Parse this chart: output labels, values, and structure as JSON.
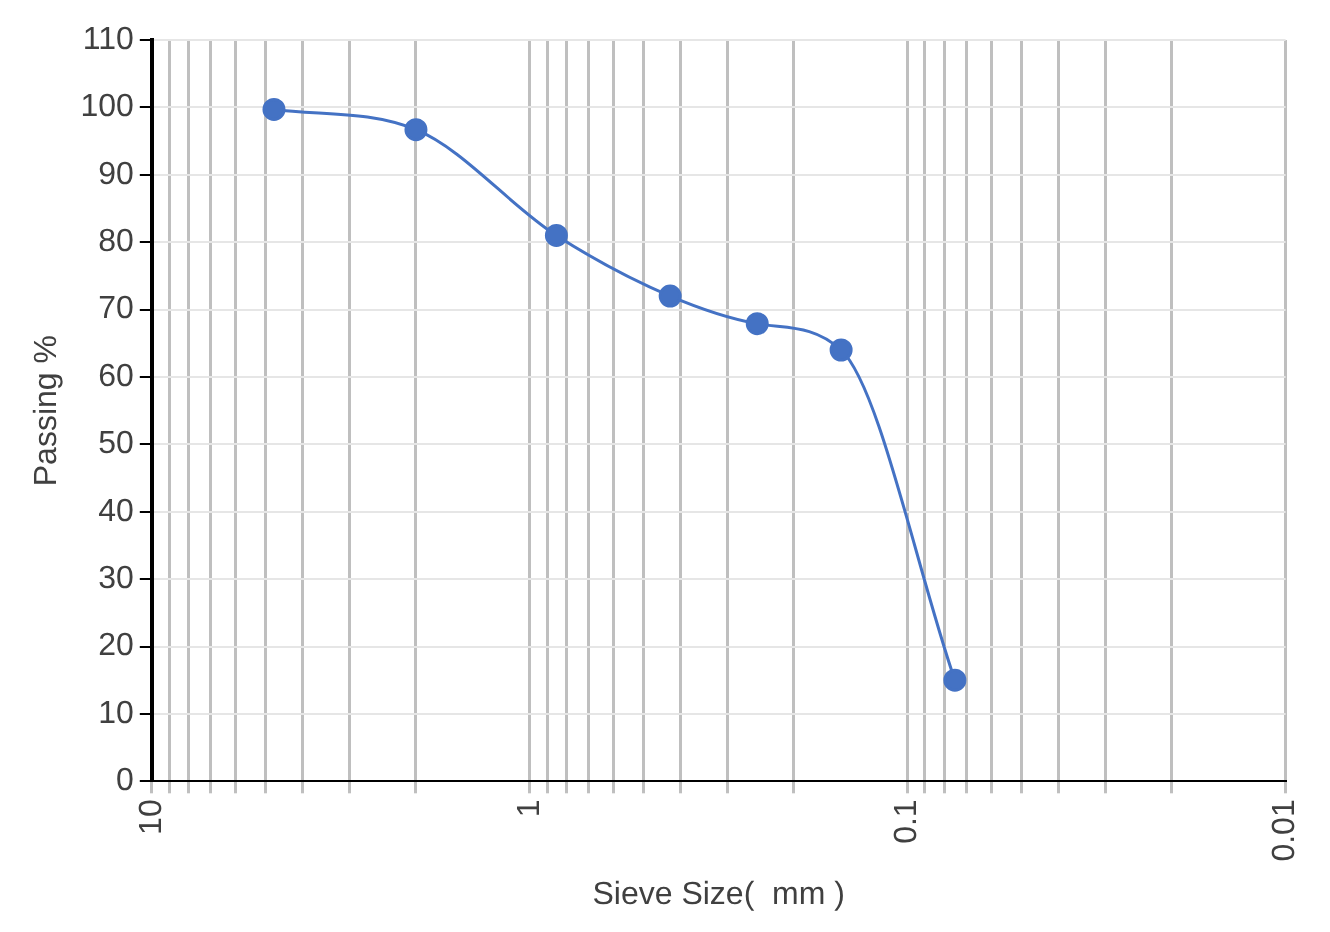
{
  "chart_data": {
    "type": "line",
    "xlabel": "Sieve Size(  mm )",
    "ylabel": "Passing %",
    "x": [
      4.75,
      2,
      0.85,
      0.425,
      0.25,
      0.15,
      0.075
    ],
    "series": [
      {
        "color": "#4472c4",
        "values": [
          99.7,
          96.7,
          81,
          72,
          67.9,
          64,
          15
        ]
      }
    ],
    "log": "x",
    "xlim": [
      10,
      0.01
    ],
    "xticks": [
      10,
      {
        "value": 9,
        "label": null
      },
      {
        "value": 8,
        "label": null
      },
      {
        "value": 7,
        "label": null
      },
      {
        "value": 6,
        "label": null
      },
      {
        "value": 5,
        "label": null
      },
      {
        "value": 4,
        "label": null
      },
      {
        "value": 3,
        "label": null
      },
      {
        "value": 2,
        "label": null
      },
      1,
      {
        "value": 0.9,
        "label": null
      },
      {
        "value": 0.8,
        "label": null
      },
      {
        "value": 0.7,
        "label": null
      },
      {
        "value": 0.6,
        "label": null
      },
      {
        "value": 0.5,
        "label": null
      },
      {
        "value": 0.4,
        "label": null
      },
      {
        "value": 0.3,
        "label": null
      },
      {
        "value": 0.2,
        "label": null
      },
      0.1,
      {
        "value": 0.09,
        "label": null
      },
      {
        "value": 0.08,
        "label": null
      },
      {
        "value": 0.07,
        "label": null
      },
      {
        "value": 0.06,
        "label": null
      },
      {
        "value": 0.05,
        "label": null
      },
      {
        "value": 0.04,
        "label": null
      },
      {
        "value": 0.03,
        "label": null
      },
      {
        "value": 0.02,
        "label": null
      },
      0.01
    ],
    "ylim": [
      0,
      110
    ],
    "yticks": [
      0,
      10,
      20,
      30,
      40,
      50,
      60,
      70,
      80,
      90,
      100,
      110
    ],
    "grid": true,
    "marker": "circle",
    "line_style": "solid",
    "legend": false
  }
}
